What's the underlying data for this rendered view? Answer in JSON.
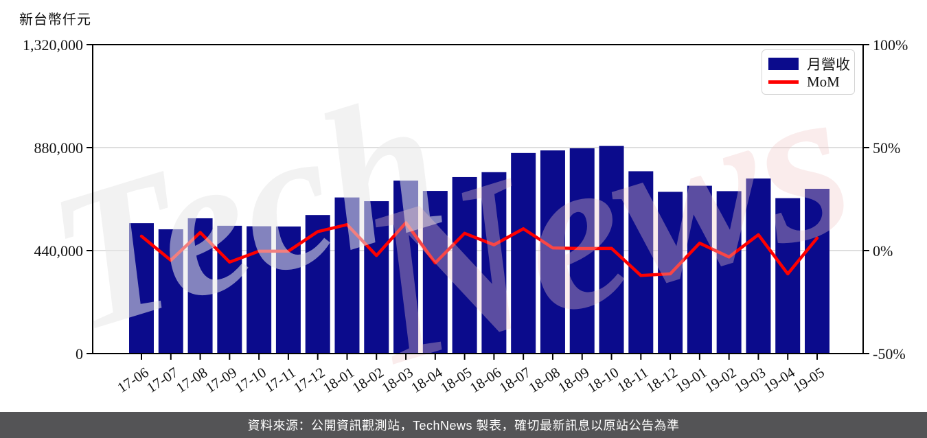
{
  "header": {
    "y_axis_title": "新台幣仟元"
  },
  "legend": {
    "bar_label": "月營收",
    "line_label": "MoM"
  },
  "footer": {
    "text": "資料來源：公開資訊觀測站，TechNews 製表，確切最新訊息以原站公告為準"
  },
  "watermark": {
    "part1": "Tech",
    "part2": "News",
    "color1": "#e7e7e7",
    "color2": "#f2c9c9"
  },
  "colors": {
    "bar": "#0b0b8c",
    "line": "#fe0000",
    "grid": "#d3d3d3",
    "axis": "#000000",
    "tick_text": "#111111",
    "footer_bg": "#545456",
    "footer_text": "#ffffff",
    "legend_border": "#d5d5d5",
    "background": "#ffffff"
  },
  "chart_data": {
    "type": "bar",
    "title": "",
    "xlabel": "",
    "ylabel": "新台幣仟元",
    "categories": [
      "17-06",
      "17-07",
      "17-08",
      "17-09",
      "17-10",
      "17-11",
      "17-12",
      "18-01",
      "18-02",
      "18-03",
      "18-04",
      "18-05",
      "18-06",
      "18-07",
      "18-08",
      "18-09",
      "18-10",
      "18-11",
      "18-12",
      "19-01",
      "19-02",
      "19-03",
      "19-04",
      "19-05"
    ],
    "series": [
      {
        "name": "月營收",
        "type": "bar",
        "axis": "left",
        "unit": "新台幣仟元",
        "values": [
          557000,
          531000,
          578000,
          546000,
          544000,
          543000,
          592000,
          667000,
          651000,
          739000,
          695000,
          754000,
          775000,
          857000,
          868000,
          877000,
          887000,
          779000,
          691000,
          717000,
          694000,
          748000,
          664000,
          704000
        ]
      },
      {
        "name": "MoM",
        "type": "line",
        "axis": "right",
        "unit": "%",
        "values": [
          7.0,
          -4.7,
          8.8,
          -5.6,
          -0.3,
          -0.3,
          9.2,
          12.6,
          -2.4,
          13.5,
          -6.0,
          8.4,
          2.8,
          10.6,
          1.3,
          1.0,
          1.1,
          -12.1,
          -11.3,
          3.6,
          -3.1,
          7.7,
          -11.3,
          6.1
        ]
      }
    ],
    "left_axis": {
      "ticks": [
        0,
        440000,
        880000,
        1320000
      ],
      "range": [
        0,
        1320000
      ]
    },
    "right_axis": {
      "ticks_pct": [
        -50,
        0,
        50,
        100
      ],
      "range_pct": [
        -50,
        100
      ]
    },
    "gridlines_left_values": [
      440000,
      880000
    ],
    "grid": true,
    "legend_position": "top-right"
  }
}
